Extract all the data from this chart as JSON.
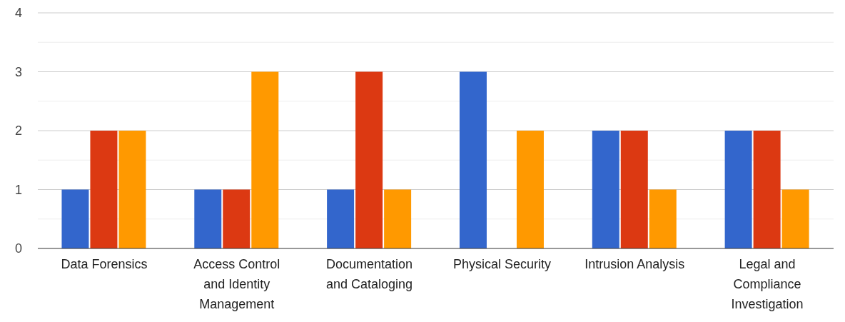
{
  "chart_data": {
    "type": "bar",
    "categories": [
      "Data Forensics",
      "Access Control and Identity Management",
      "Documentation and Cataloging",
      "Physical Security",
      "Intrusion Analysis",
      "Legal and Compliance Investigation"
    ],
    "series": [
      {
        "color": "#3366cc",
        "values": [
          1,
          1,
          1,
          3,
          2,
          2
        ]
      },
      {
        "color": "#dc3912",
        "values": [
          2,
          1,
          3,
          0,
          2,
          2
        ]
      },
      {
        "color": "#ff9900",
        "values": [
          2,
          3,
          1,
          2,
          1,
          1
        ]
      }
    ],
    "ylim": [
      0,
      4
    ],
    "yticks": [
      0,
      {
        "value": 0.5,
        "label": null
      },
      1,
      {
        "value": 1.5,
        "label": null
      },
      2,
      {
        "value": 2.5,
        "label": null
      },
      3,
      {
        "value": 3.5,
        "label": null
      },
      4
    ],
    "grid": "y",
    "legend": false
  }
}
